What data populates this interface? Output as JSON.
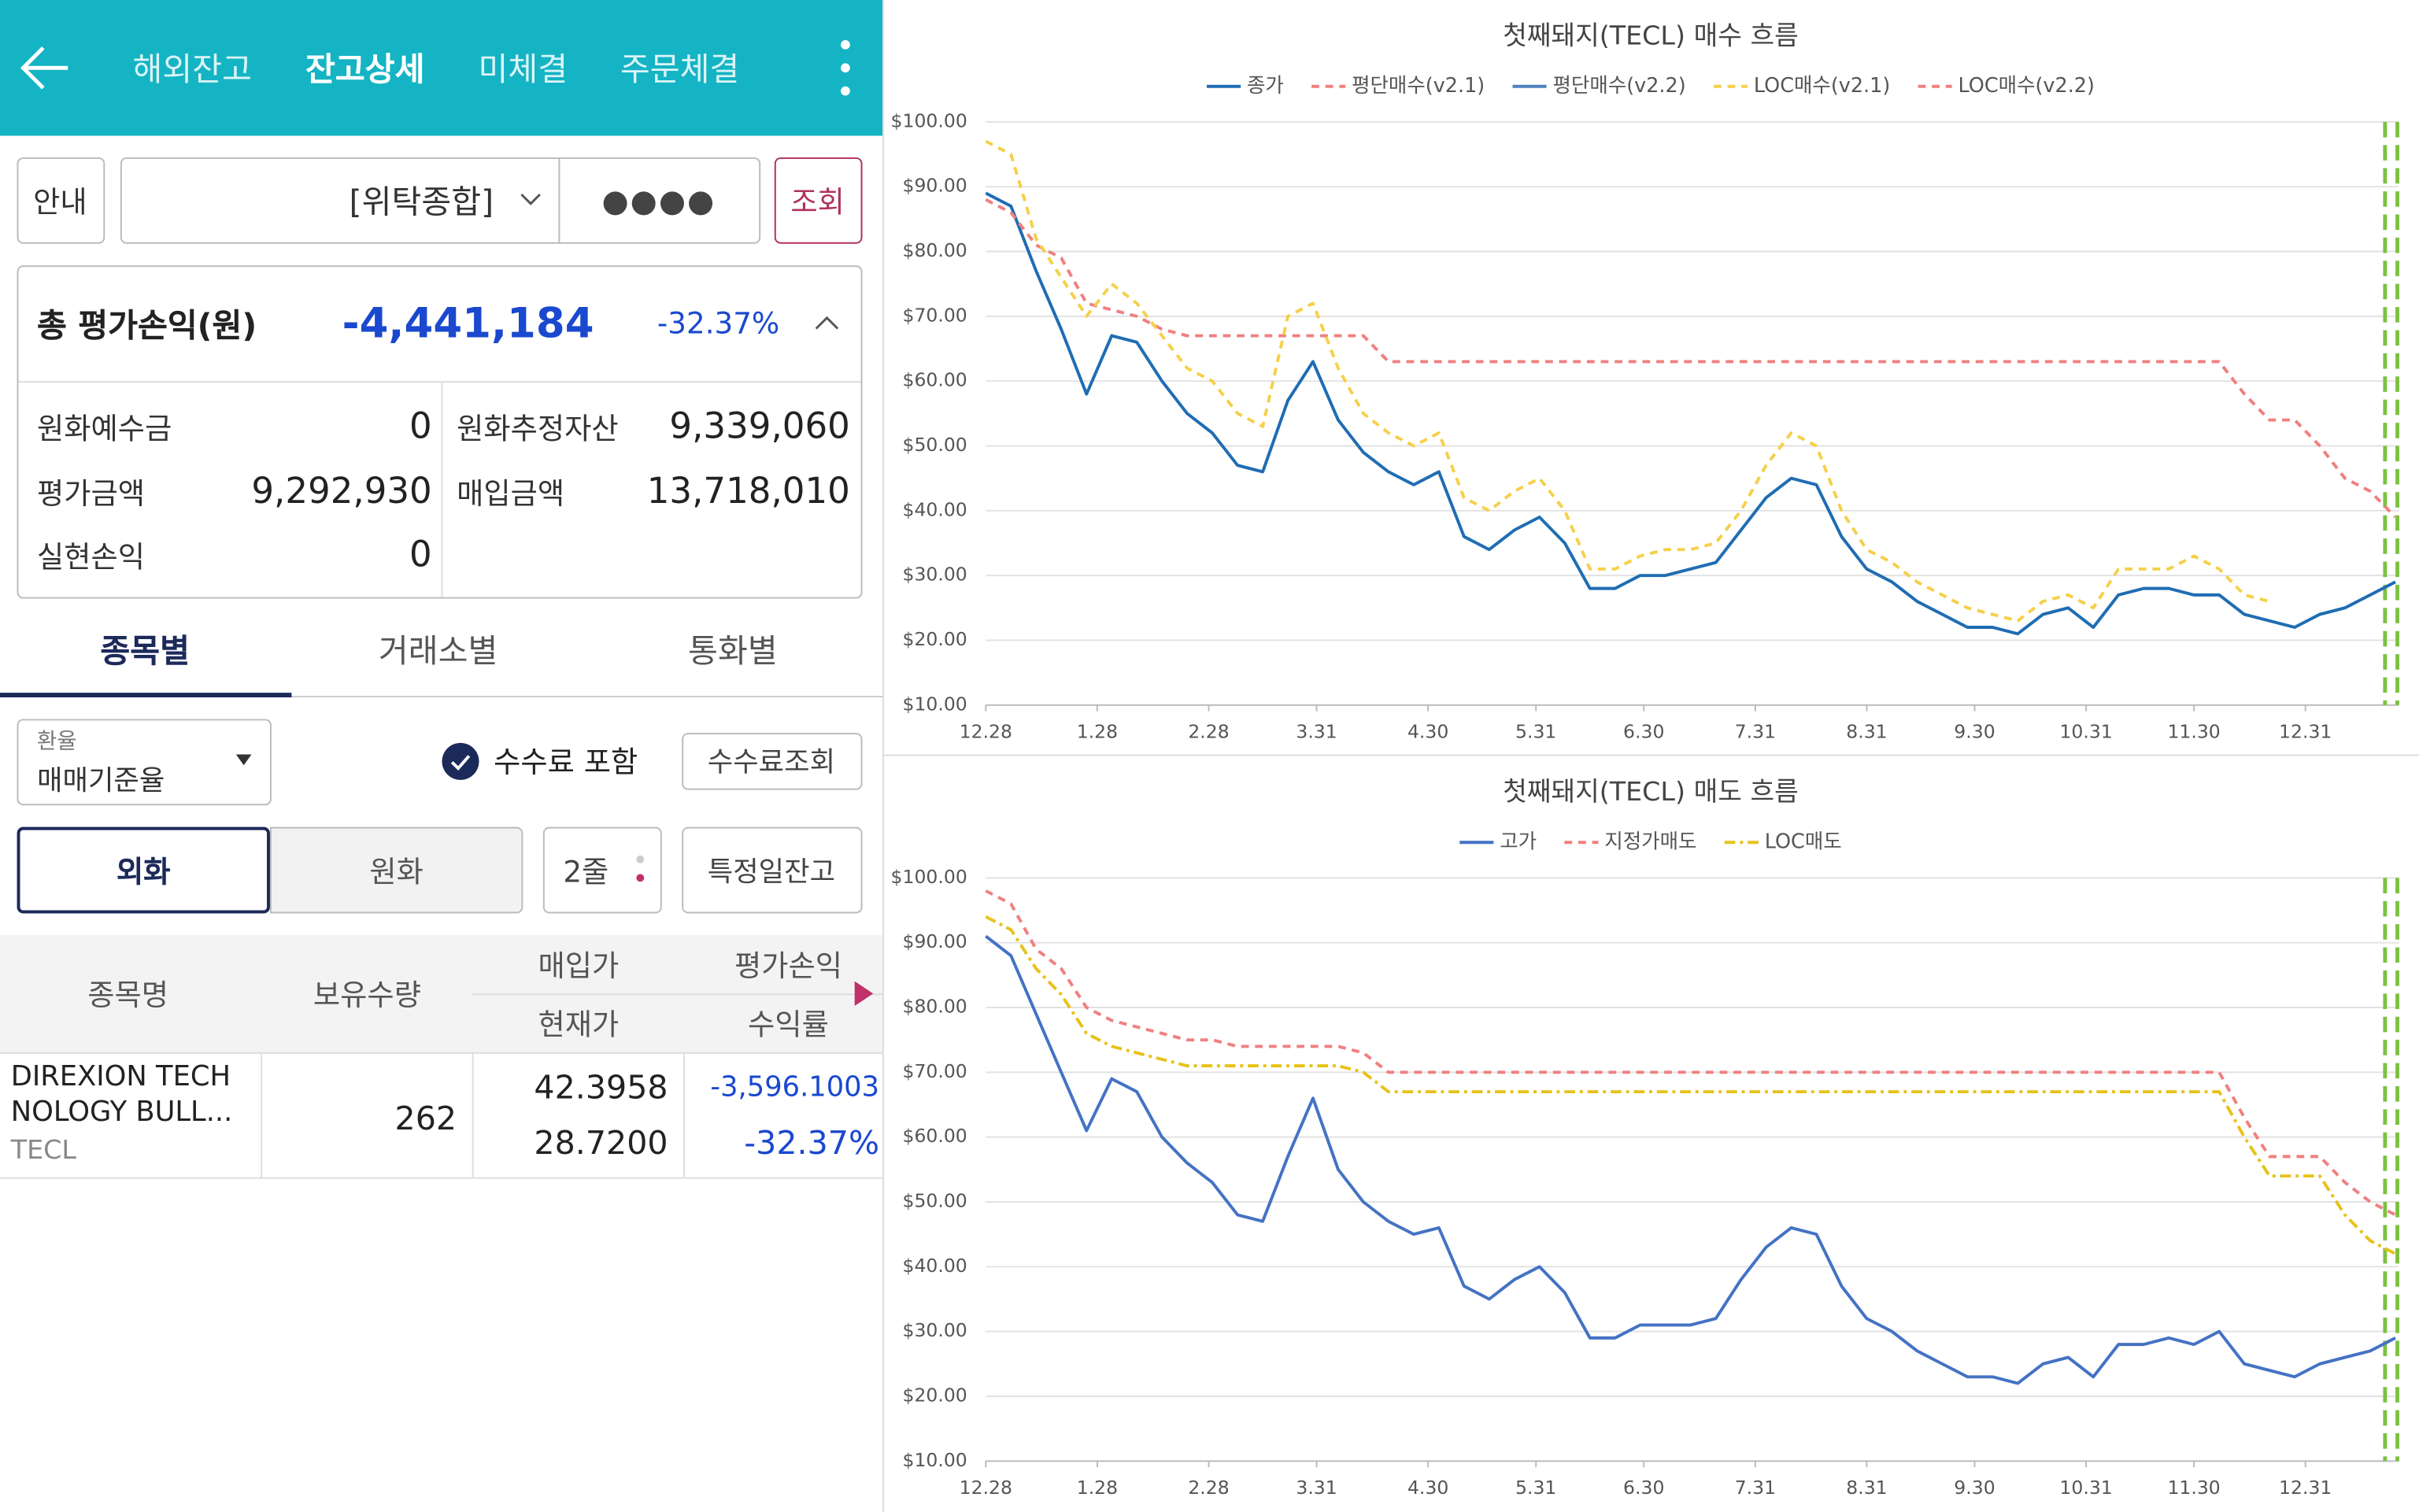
{
  "header": {
    "tabs": [
      "해외잔고",
      "잔고상세",
      "미체결",
      "주문체결"
    ]
  },
  "account": {
    "guide": "안내",
    "account_type": "[위탁종합]",
    "password": "●●●●",
    "query": "조회"
  },
  "summary": {
    "label": "총 평가손익(원)",
    "value": "-4,441,184",
    "rate": "-32.37%",
    "rows": [
      [
        "원화예수금",
        "0",
        "원화추정자산",
        "9,339,060"
      ],
      [
        "평가금액",
        "9,292,930",
        "매입금액",
        "13,718,010"
      ],
      [
        "실현손익",
        "0"
      ]
    ]
  },
  "view_tabs": [
    "종목별",
    "거래소별",
    "통화별"
  ],
  "options": {
    "rate_caption": "환율",
    "rate_value": "매매기준율",
    "fee_include": "수수료 포함",
    "fee_query": "수수료조회",
    "currency": [
      "외화",
      "원화"
    ],
    "lines": "2줄",
    "specific_date": "특정일잔고"
  },
  "table": {
    "headers": [
      "종목명",
      "보유수량",
      "매입가",
      "현재가",
      "평가손익",
      "수익률"
    ],
    "rows": [
      {
        "name": [
          "DIREXION TECH",
          "NOLOGY BULL..."
        ],
        "ticker": "TECL",
        "quantity": "262",
        "buy_price": "42.3958",
        "current_price": "28.7200",
        "pnl": "-3,596.1003",
        "rate": "-32.37%"
      }
    ]
  },
  "chart_data": [
    {
      "type": "line",
      "title": "첫째돼지(TECL) 매수 흐름",
      "grid": true,
      "x": [
        0,
        7,
        14,
        21,
        28,
        35,
        42,
        49,
        56,
        63,
        70,
        77,
        84,
        91,
        98,
        105,
        112,
        119,
        126,
        133,
        140,
        147,
        154,
        161,
        168,
        175,
        182,
        189,
        196,
        203,
        210,
        217,
        224,
        231,
        238,
        245,
        252,
        259,
        266,
        273,
        280,
        287,
        294,
        301,
        308,
        315,
        322,
        329,
        336,
        343,
        350,
        357,
        364,
        371,
        378,
        385,
        392
      ],
      "xlim": [
        0,
        393
      ],
      "xticks": [
        {
          "value": 0,
          "label": "12.28"
        },
        {
          "value": 31,
          "label": "1.28"
        },
        {
          "value": 62,
          "label": "2.28"
        },
        {
          "value": 92,
          "label": "3.31"
        },
        {
          "value": 123,
          "label": "4.30"
        },
        {
          "value": 153,
          "label": "5.31"
        },
        {
          "value": 183,
          "label": "6.30"
        },
        {
          "value": 214,
          "label": "7.31"
        },
        {
          "value": 245,
          "label": "8.31"
        },
        {
          "value": 275,
          "label": "9.30"
        },
        {
          "value": 306,
          "label": "10.31"
        },
        {
          "value": 336,
          "label": "11.30"
        },
        {
          "value": 367,
          "label": "12.31"
        }
      ],
      "ylim": [
        10,
        100
      ],
      "yticks": [
        {
          "value": 10,
          "label": "$10.00"
        },
        {
          "value": 20,
          "label": "$20.00"
        },
        {
          "value": 30,
          "label": "$30.00"
        },
        {
          "value": 40,
          "label": "$40.00"
        },
        {
          "value": 50,
          "label": "$50.00"
        },
        {
          "value": 60,
          "label": "$60.00"
        },
        {
          "value": 70,
          "label": "$70.00"
        },
        {
          "value": 80,
          "label": "$80.00"
        },
        {
          "value": 90,
          "label": "$90.00"
        },
        {
          "value": 100,
          "label": "$100.00"
        }
      ],
      "series": [
        {
          "name": "종가",
          "color": "#1f6db3",
          "dash": "solid",
          "values": [
            89,
            87,
            77,
            68,
            58,
            67,
            66,
            60,
            55,
            52,
            47,
            46,
            57,
            63,
            54,
            49,
            46,
            44,
            46,
            36,
            34,
            37,
            39,
            35,
            28,
            28,
            30,
            30,
            31,
            32,
            37,
            42,
            45,
            44,
            36,
            31,
            29,
            26,
            24,
            22,
            22,
            21,
            24,
            25,
            22,
            27,
            28,
            28,
            27,
            27,
            24,
            23,
            22,
            24,
            25,
            27,
            29
          ]
        },
        {
          "name": "평단매수(v2.1)",
          "color": "#f08080",
          "dash": "dashed",
          "values": [
            88,
            86,
            81,
            79,
            72,
            71,
            70,
            68,
            67,
            67,
            67,
            67,
            67,
            67,
            67,
            67,
            63,
            63,
            63,
            63,
            63,
            63,
            63,
            63,
            63,
            63,
            63,
            63,
            63,
            63,
            63,
            63,
            63,
            63,
            63,
            63,
            63,
            63,
            63,
            63,
            63,
            63,
            63,
            63,
            63,
            63,
            63,
            63,
            63,
            63,
            58,
            54,
            54,
            50,
            45,
            43,
            39
          ]
        },
        {
          "name": "평단매수(v2.2)",
          "color": "#4f81bd",
          "dash": "solid",
          "values": [
            null,
            null,
            null,
            null,
            null,
            null,
            null,
            null,
            null,
            null,
            null,
            null,
            null,
            null,
            null,
            null,
            null,
            null,
            null,
            null,
            null,
            null,
            null,
            null,
            null,
            null,
            null,
            null,
            null,
            null,
            null,
            null,
            null,
            null,
            null,
            null,
            null,
            null,
            null,
            null,
            null,
            null,
            null,
            null,
            null,
            null,
            null,
            null,
            null,
            null,
            null,
            null,
            null,
            null,
            null,
            null,
            null
          ]
        },
        {
          "name": "LOC매수(v2.1)",
          "color": "#f5d04a",
          "dash": "dashed",
          "values": [
            97,
            95,
            82,
            76,
            70,
            75,
            72,
            67,
            62,
            60,
            55,
            53,
            70,
            72,
            62,
            55,
            52,
            50,
            52,
            42,
            40,
            43,
            45,
            40,
            31,
            31,
            33,
            34,
            34,
            35,
            40,
            47,
            52,
            50,
            40,
            34,
            32,
            29,
            27,
            25,
            24,
            23,
            26,
            27,
            25,
            31,
            31,
            31,
            33,
            31,
            27,
            26,
            null,
            null,
            null,
            null,
            null
          ]
        },
        {
          "name": "LOC매수(v2.2)",
          "color": "#f08080",
          "dash": "dashed",
          "values": [
            null,
            null,
            null,
            null,
            null,
            null,
            null,
            null,
            null,
            null,
            null,
            null,
            null,
            null,
            null,
            null,
            null,
            null,
            null,
            null,
            null,
            null,
            null,
            null,
            null,
            null,
            null,
            null,
            null,
            null,
            null,
            null,
            null,
            null,
            null,
            null,
            null,
            null,
            null,
            null,
            null,
            null,
            null,
            null,
            null,
            null,
            null,
            null,
            null,
            null,
            null,
            null,
            null,
            null,
            null,
            null,
            null
          ]
        }
      ]
    },
    {
      "type": "line",
      "title": "첫째돼지(TECL) 매도 흐름",
      "grid": true,
      "x": [
        0,
        7,
        14,
        21,
        28,
        35,
        42,
        49,
        56,
        63,
        70,
        77,
        84,
        91,
        98,
        105,
        112,
        119,
        126,
        133,
        140,
        147,
        154,
        161,
        168,
        175,
        182,
        189,
        196,
        203,
        210,
        217,
        224,
        231,
        238,
        245,
        252,
        259,
        266,
        273,
        280,
        287,
        294,
        301,
        308,
        315,
        322,
        329,
        336,
        343,
        350,
        357,
        364,
        371,
        378,
        385,
        392
      ],
      "xlim": [
        0,
        393
      ],
      "xticks": [
        {
          "value": 0,
          "label": "12.28"
        },
        {
          "value": 31,
          "label": "1.28"
        },
        {
          "value": 62,
          "label": "2.28"
        },
        {
          "value": 92,
          "label": "3.31"
        },
        {
          "value": 123,
          "label": "4.30"
        },
        {
          "value": 153,
          "label": "5.31"
        },
        {
          "value": 183,
          "label": "6.30"
        },
        {
          "value": 214,
          "label": "7.31"
        },
        {
          "value": 245,
          "label": "8.31"
        },
        {
          "value": 275,
          "label": "9.30"
        },
        {
          "value": 306,
          "label": "10.31"
        },
        {
          "value": 336,
          "label": "11.30"
        },
        {
          "value": 367,
          "label": "12.31"
        }
      ],
      "ylim": [
        10,
        100
      ],
      "yticks": [
        {
          "value": 10,
          "label": "$10.00"
        },
        {
          "value": 20,
          "label": "$20.00"
        },
        {
          "value": 30,
          "label": "$30.00"
        },
        {
          "value": 40,
          "label": "$40.00"
        },
        {
          "value": 50,
          "label": "$50.00"
        },
        {
          "value": 60,
          "label": "$60.00"
        },
        {
          "value": 70,
          "label": "$70.00"
        },
        {
          "value": 80,
          "label": "$80.00"
        },
        {
          "value": 90,
          "label": "$90.00"
        },
        {
          "value": 100,
          "label": "$100.00"
        }
      ],
      "series": [
        {
          "name": "고가",
          "color": "#4472c4",
          "dash": "solid",
          "values": [
            91,
            88,
            79,
            70,
            61,
            69,
            67,
            60,
            56,
            53,
            48,
            47,
            57,
            66,
            55,
            50,
            47,
            45,
            46,
            37,
            35,
            38,
            40,
            36,
            29,
            29,
            31,
            31,
            31,
            32,
            38,
            43,
            46,
            45,
            37,
            32,
            30,
            27,
            25,
            23,
            23,
            22,
            25,
            26,
            23,
            28,
            28,
            29,
            28,
            30,
            25,
            24,
            23,
            25,
            26,
            27,
            29
          ]
        },
        {
          "name": "지정가매도",
          "color": "#f08080",
          "dash": "dashed",
          "values": [
            98,
            96,
            89,
            86,
            80,
            78,
            77,
            76,
            75,
            75,
            74,
            74,
            74,
            74,
            74,
            73,
            70,
            70,
            70,
            70,
            70,
            70,
            70,
            70,
            70,
            70,
            70,
            70,
            70,
            70,
            70,
            70,
            70,
            70,
            70,
            70,
            70,
            70,
            70,
            70,
            70,
            70,
            70,
            70,
            70,
            70,
            70,
            70,
            70,
            70,
            63,
            57,
            57,
            57,
            53,
            50,
            48
          ]
        },
        {
          "name": "LOC매도",
          "color": "#e8c21a",
          "dash": "dashdot",
          "values": [
            94,
            92,
            86,
            82,
            76,
            74,
            73,
            72,
            71,
            71,
            71,
            71,
            71,
            71,
            71,
            70,
            67,
            67,
            67,
            67,
            67,
            67,
            67,
            67,
            67,
            67,
            67,
            67,
            67,
            67,
            67,
            67,
            67,
            67,
            67,
            67,
            67,
            67,
            67,
            67,
            67,
            67,
            67,
            67,
            67,
            67,
            67,
            67,
            67,
            67,
            60,
            54,
            54,
            54,
            48,
            44,
            42
          ]
        }
      ]
    }
  ]
}
